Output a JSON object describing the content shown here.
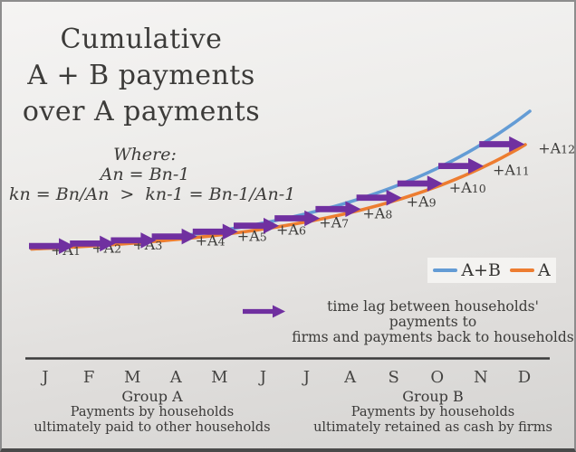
{
  "slide": {
    "title_lines": [
      "Cumulative",
      "A + B payments",
      "over A payments"
    ]
  },
  "formula_note": {
    "lines": [
      "Where:",
      "An = Bn-1",
      "kn = Bn/An  >  kn-1 = Bn-1/An-1"
    ]
  },
  "chart_data": {
    "type": "line",
    "title": "Cumulative A + B payments over A payments",
    "x_categories": [
      "J",
      "F",
      "M",
      "A",
      "M",
      "J",
      "J",
      "A",
      "S",
      "O",
      "N",
      "D"
    ],
    "series": [
      {
        "name": "A+B",
        "color": "#649CD5",
        "values": [
          0,
          3.3,
          7.4,
          12.6,
          19.3,
          27.7,
          38.3,
          51.8,
          68.8,
          90.4,
          117.8,
          152.5
        ]
      },
      {
        "name": "A",
        "color": "#ED7D31",
        "values": [
          0,
          2.5,
          5.6,
          9.6,
          14.6,
          21.0,
          29.0,
          39.2,
          52.1,
          68.5,
          89.2,
          115.5
        ]
      }
    ],
    "growth_rate": 2.6,
    "annotations": [
      "+A1",
      "+A2",
      "+A3",
      "+A4",
      "+A5",
      "+A6",
      "+A7",
      "+A8",
      "+A9",
      "+A10",
      "+A11",
      "+A12"
    ],
    "annotation_color": "#7030A0",
    "grid": false,
    "legend_position": "bottom-right",
    "axis_color": "#3a3a3a"
  },
  "legend": {
    "entries": [
      {
        "label": "A+B",
        "color": "#649CD5"
      },
      {
        "label": "A",
        "color": "#ED7D31"
      }
    ]
  },
  "time_lag_note": {
    "arrow_color": "#7030A0",
    "lines": [
      "time lag between households' payments to",
      "firms and payments back to households"
    ]
  },
  "captions": {
    "group_a": {
      "lines": [
        "Group A",
        "Payments by households",
        "ultimately paid to other households"
      ]
    },
    "group_b": {
      "lines": [
        "Group B",
        "Payments by households",
        "ultimately retained as cash by firms"
      ]
    }
  }
}
